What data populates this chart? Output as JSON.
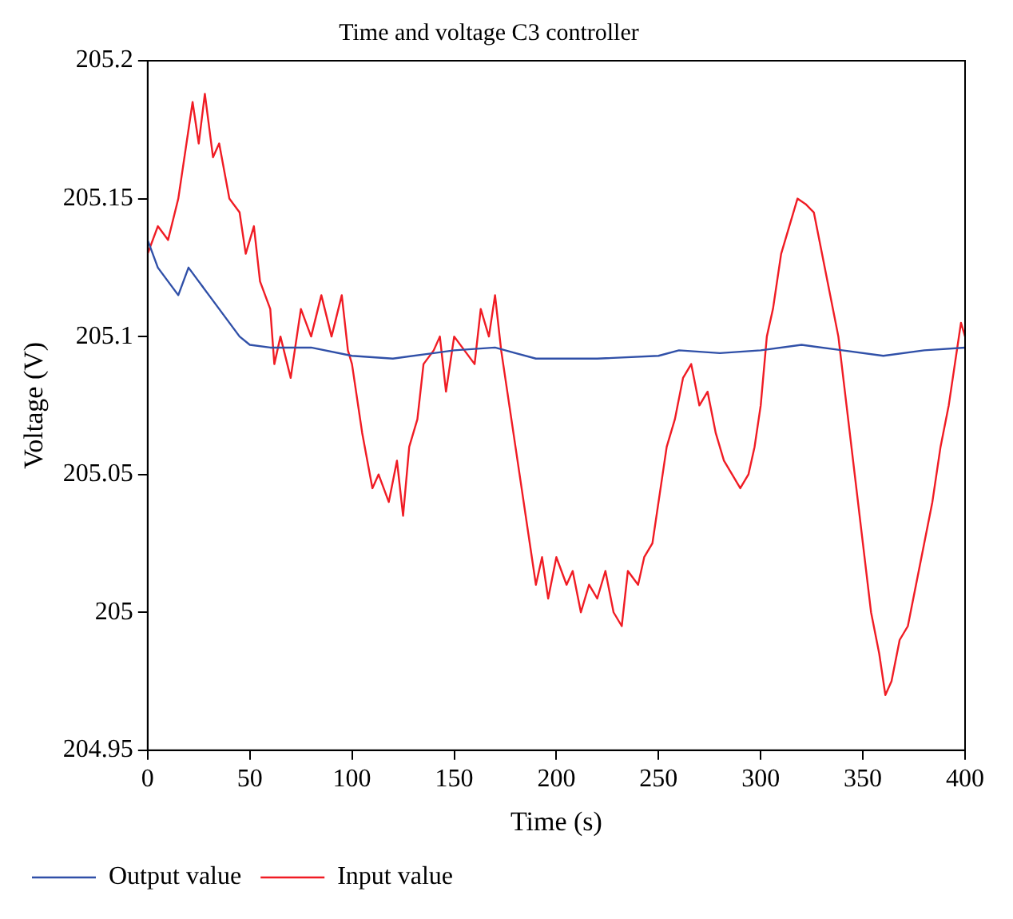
{
  "chart_data": {
    "type": "line",
    "title": "Time and voltage C3 controller",
    "xlabel": "Time (s)",
    "ylabel": "Voltage (V)",
    "xlim": [
      0,
      400
    ],
    "xticks": [
      0,
      50,
      100,
      150,
      200,
      250,
      300,
      350,
      400
    ],
    "ylim": [
      204.95,
      205.2
    ],
    "yticks": [
      204.95,
      205,
      205.05,
      205.1,
      205.15,
      205.2
    ],
    "grid": false,
    "legend": "bottom left",
    "marker": "none",
    "line_style": "solid",
    "series": [
      {
        "name": "Output value",
        "color": "#3050a8",
        "x": [
          0,
          5,
          10,
          15,
          20,
          25,
          30,
          35,
          40,
          45,
          50,
          60,
          80,
          100,
          120,
          140,
          150,
          170,
          180,
          190,
          220,
          250,
          260,
          280,
          300,
          320,
          340,
          360,
          380,
          400
        ],
        "values": [
          205.135,
          205.125,
          205.12,
          205.115,
          205.125,
          205.12,
          205.115,
          205.11,
          205.105,
          205.1,
          205.097,
          205.096,
          205.096,
          205.093,
          205.092,
          205.094,
          205.095,
          205.096,
          205.094,
          205.092,
          205.092,
          205.093,
          205.095,
          205.094,
          205.095,
          205.097,
          205.095,
          205.093,
          205.095,
          205.096
        ]
      },
      {
        "name": "Input value",
        "color": "#f01c24",
        "x": [
          0,
          5,
          10,
          15,
          20,
          22,
          25,
          28,
          32,
          35,
          40,
          45,
          48,
          52,
          55,
          60,
          62,
          65,
          70,
          75,
          80,
          85,
          90,
          95,
          98,
          100,
          105,
          110,
          113,
          118,
          122,
          125,
          128,
          132,
          135,
          140,
          143,
          146,
          150,
          155,
          160,
          163,
          167,
          170,
          173,
          176,
          180,
          183,
          186,
          190,
          193,
          196,
          200,
          205,
          208,
          212,
          216,
          220,
          224,
          228,
          232,
          235,
          240,
          243,
          247,
          250,
          254,
          258,
          262,
          266,
          270,
          274,
          278,
          282,
          286,
          290,
          294,
          297,
          300,
          303,
          306,
          310,
          314,
          318,
          322,
          326,
          330,
          334,
          338,
          342,
          346,
          350,
          354,
          358,
          361,
          364,
          368,
          372,
          376,
          380,
          384,
          388,
          392,
          395,
          398,
          400
        ],
        "values": [
          205.13,
          205.14,
          205.135,
          205.15,
          205.175,
          205.185,
          205.17,
          205.188,
          205.165,
          205.17,
          205.15,
          205.145,
          205.13,
          205.14,
          205.12,
          205.11,
          205.09,
          205.1,
          205.085,
          205.11,
          205.1,
          205.115,
          205.1,
          205.115,
          205.095,
          205.09,
          205.065,
          205.045,
          205.05,
          205.04,
          205.055,
          205.035,
          205.06,
          205.07,
          205.09,
          205.095,
          205.1,
          205.08,
          205.1,
          205.095,
          205.09,
          205.11,
          205.1,
          205.115,
          205.095,
          205.08,
          205.06,
          205.045,
          205.03,
          205.01,
          205.02,
          205.005,
          205.02,
          205.01,
          205.015,
          205,
          205.01,
          205.005,
          205.015,
          205,
          204.995,
          205.015,
          205.01,
          205.02,
          205.025,
          205.04,
          205.06,
          205.07,
          205.085,
          205.09,
          205.075,
          205.08,
          205.065,
          205.055,
          205.05,
          205.045,
          205.05,
          205.06,
          205.075,
          205.1,
          205.11,
          205.13,
          205.14,
          205.15,
          205.148,
          205.145,
          205.13,
          205.115,
          205.1,
          205.075,
          205.05,
          205.025,
          205,
          204.985,
          204.97,
          204.975,
          204.99,
          204.995,
          205.01,
          205.025,
          205.04,
          205.06,
          205.075,
          205.09,
          205.105,
          205.1
        ]
      }
    ]
  }
}
